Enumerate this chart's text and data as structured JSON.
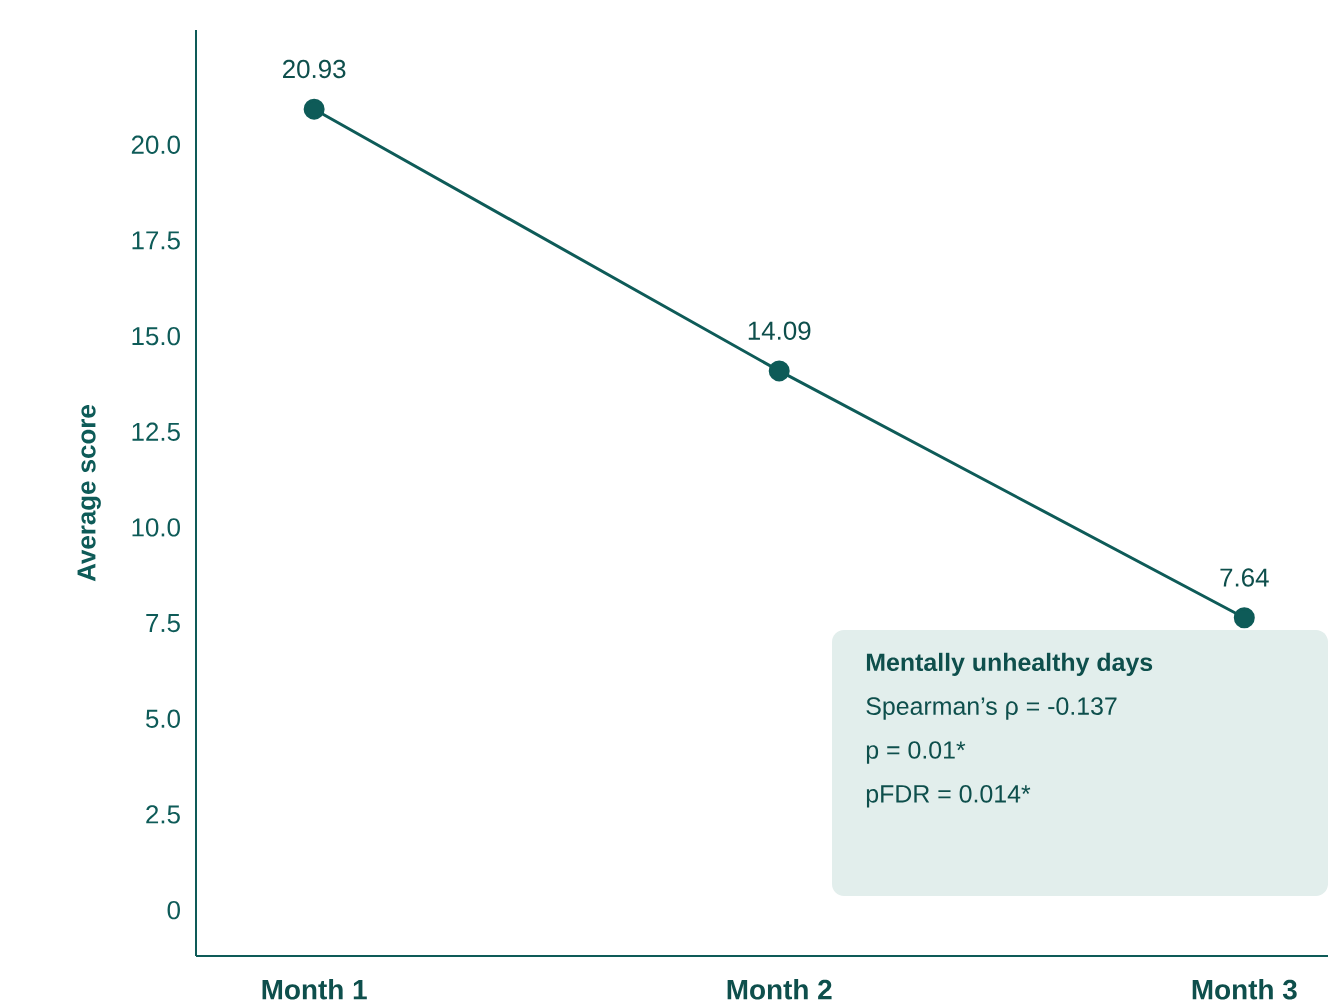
{
  "chart_data": {
    "type": "line",
    "ylabel": "Average score",
    "categories": [
      "Month 1",
      "Month 2",
      "Month 3"
    ],
    "values": [
      20.93,
      14.09,
      7.64
    ],
    "color": "#0e5b58",
    "marker": "circle",
    "line_style": "solid",
    "data_labels": true,
    "ylim": [
      -1.2,
      23
    ],
    "yticks": [
      0,
      {
        "value": 2.5,
        "label": "2.5"
      },
      {
        "value": 5,
        "label": "5.0"
      },
      {
        "value": 7.5,
        "label": "7.5"
      },
      {
        "value": 10,
        "label": "10.0"
      },
      {
        "value": 12.5,
        "label": "12.5"
      },
      {
        "value": 15,
        "label": "15.0"
      },
      {
        "value": 17.5,
        "label": "17.5"
      },
      {
        "value": 20,
        "label": "20.0"
      }
    ],
    "grid": false,
    "annotations": [
      "Mentally unhealthy days",
      "Spearman’s ρ = -0.137",
      "p = 0.01*",
      "pFDR = 0.014*"
    ]
  }
}
